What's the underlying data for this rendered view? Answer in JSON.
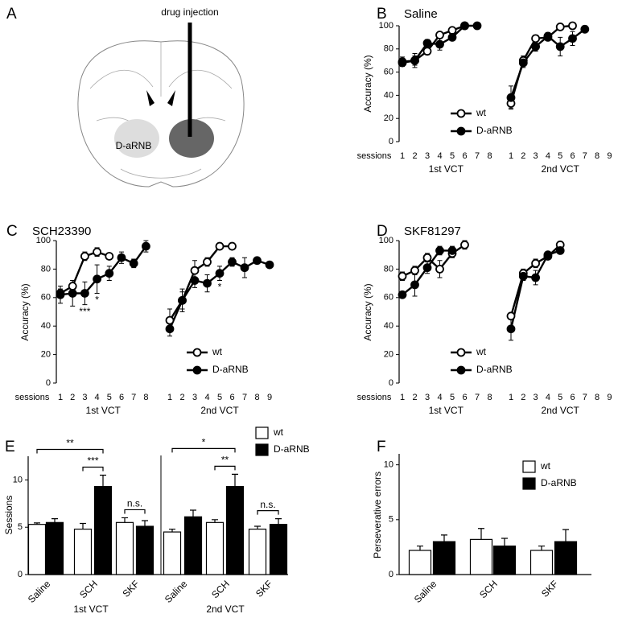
{
  "diagram": {
    "panel": "A",
    "annotation": "drug injection",
    "region": "D-aRNB"
  },
  "chart_data": [
    {
      "type": "line",
      "panel": "B",
      "title": "Saline",
      "ylabel": "Accuracy (%)",
      "xlabel": "sessions",
      "ylim": [
        0,
        100
      ],
      "yticks": [
        0,
        20,
        40,
        60,
        80,
        100
      ],
      "legend": "lower right",
      "series": [
        {
          "name": "wt",
          "marker": "open",
          "color": "#000000"
        },
        {
          "name": "D-aRNB",
          "marker": "filled",
          "color": "#000000"
        }
      ],
      "groups": [
        {
          "name": "1st VCT",
          "x": [
            1,
            2,
            3,
            4,
            5,
            6,
            7,
            8
          ],
          "values": [
            [
              68,
              70,
              78,
              92,
              96,
              100
            ],
            [
              69,
              70,
              85,
              84,
              90,
              100,
              100
            ]
          ],
          "errors": [
            [
              3,
              4,
              3,
              2,
              2,
              0
            ],
            [
              4,
              6,
              3,
              5,
              2,
              0,
              0
            ]
          ]
        },
        {
          "name": "2nd VCT",
          "x": [
            1,
            2,
            3,
            4,
            5,
            6,
            7,
            8,
            9
          ],
          "values": [
            [
              33,
              70,
              89,
              90,
              99,
              100
            ],
            [
              38,
              68,
              82,
              91,
              82,
              89,
              97
            ]
          ],
          "errors": [
            [
              4,
              4,
              3,
              2,
              1,
              0
            ],
            [
              10,
              4,
              4,
              3,
              8,
              6,
              3
            ]
          ]
        }
      ]
    },
    {
      "type": "line",
      "panel": "C",
      "title": "SCH23390",
      "ylabel": "Accuracy (%)",
      "xlabel": "sessions",
      "ylim": [
        0,
        100
      ],
      "yticks": [
        0,
        20,
        40,
        60,
        80,
        100
      ],
      "legend": "lower right",
      "series": [
        {
          "name": "wt",
          "marker": "open",
          "color": "#000000"
        },
        {
          "name": "D-aRNB",
          "marker": "filled",
          "color": "#000000"
        }
      ],
      "groups": [
        {
          "name": "1st VCT",
          "x": [
            1,
            2,
            3,
            4,
            5,
            6,
            7,
            8
          ],
          "values": [
            [
              63,
              68,
              89,
              92,
              89
            ],
            [
              62,
              63,
              63,
              73,
              77,
              88,
              84,
              96
            ]
          ],
          "errors": [
            [
              3,
              4,
              3,
              3,
              2
            ],
            [
              6,
              9,
              8,
              10,
              5,
              4,
              3,
              4
            ]
          ]
        },
        {
          "name": "2nd VCT",
          "x": [
            1,
            2,
            3,
            4,
            5,
            6,
            7,
            8,
            9
          ],
          "values": [
            [
              44,
              58,
              79,
              85,
              96,
              96
            ],
            [
              38,
              58,
              72,
              70,
              77,
              85,
              81,
              86,
              83
            ]
          ],
          "errors": [
            [
              8,
              6,
              7,
              3,
              2,
              2
            ],
            [
              5,
              8,
              5,
              6,
              5,
              3,
              7,
              2,
              1
            ]
          ]
        }
      ],
      "annotations": [
        {
          "text": "***",
          "group": 0,
          "x": 3
        },
        {
          "text": "*",
          "group": 0,
          "x": 4
        },
        {
          "text": "*",
          "group": 1,
          "x": 5
        }
      ]
    },
    {
      "type": "line",
      "panel": "D",
      "title": "SKF81297",
      "ylabel": "Accuracy (%)",
      "xlabel": "sessions",
      "ylim": [
        0,
        100
      ],
      "yticks": [
        0,
        20,
        40,
        60,
        80,
        100
      ],
      "legend": "lower right",
      "series": [
        {
          "name": "wt",
          "marker": "open",
          "color": "#000000"
        },
        {
          "name": "D-aRNB",
          "marker": "filled",
          "color": "#000000"
        }
      ],
      "groups": [
        {
          "name": "1st VCT",
          "x": [
            1,
            2,
            3,
            4,
            5,
            6,
            7,
            8
          ],
          "values": [
            [
              75,
              79,
              88,
              80,
              91,
              97
            ],
            [
              62,
              69,
              81,
              93,
              93
            ]
          ],
          "errors": [
            [
              3,
              3,
              3,
              6,
              3,
              3
            ],
            [
              2,
              8,
              4,
              3,
              3
            ]
          ]
        },
        {
          "name": "2nd VCT",
          "x": [
            1,
            2,
            3,
            4,
            5,
            6,
            7,
            8,
            9
          ],
          "values": [
            [
              47,
              77,
              84,
              89,
              97
            ],
            [
              38,
              75,
              74,
              90,
              93
            ]
          ],
          "errors": [
            [
              2,
              3,
              3,
              2,
              1
            ],
            [
              8,
              3,
              5,
              2,
              2
            ]
          ]
        }
      ]
    },
    {
      "type": "bar",
      "panel": "E",
      "ylabel": "Sessions",
      "ylim": [
        0,
        12.5
      ],
      "yticks": [
        0,
        5,
        10
      ],
      "legend": "upper right",
      "series": [
        {
          "name": "wt",
          "color": "#ffffff"
        },
        {
          "name": "D-aRNB",
          "color": "#000000"
        }
      ],
      "groups": [
        {
          "name": "1st VCT",
          "categories": [
            "Saline",
            "SCH",
            "SKF"
          ],
          "values": [
            [
              5.3,
              4.8,
              5.5
            ],
            [
              5.5,
              9.3,
              5.1
            ]
          ],
          "errors": [
            [
              0.15,
              0.6,
              0.5
            ],
            [
              0.4,
              1.2,
              0.6
            ]
          ],
          "brackets": [
            {
              "label": "**",
              "from": [
                0,
                0
              ],
              "to": [
                1,
                1
              ]
            },
            {
              "label": "***",
              "from": [
                1,
                0
              ],
              "to": [
                1,
                1
              ]
            },
            {
              "label": "n.s.",
              "from": [
                2,
                0
              ],
              "to": [
                2,
                1
              ]
            }
          ]
        },
        {
          "name": "2nd VCT",
          "categories": [
            "Saline",
            "SCH",
            "SKF"
          ],
          "values": [
            [
              4.5,
              5.5,
              4.8
            ],
            [
              6.1,
              9.3,
              5.3
            ]
          ],
          "errors": [
            [
              0.3,
              0.3,
              0.3
            ],
            [
              0.7,
              1.3,
              0.6
            ]
          ],
          "brackets": [
            {
              "label": "*",
              "from": [
                0,
                0
              ],
              "to": [
                1,
                1
              ]
            },
            {
              "label": "**",
              "from": [
                1,
                0
              ],
              "to": [
                1,
                1
              ]
            },
            {
              "label": "n.s.",
              "from": [
                2,
                0
              ],
              "to": [
                2,
                1
              ]
            }
          ]
        }
      ]
    },
    {
      "type": "bar",
      "panel": "F",
      "ylabel": "Perseverative errors",
      "ylim": [
        0,
        11
      ],
      "yticks": [
        0,
        5,
        10
      ],
      "legend": "upper right",
      "series": [
        {
          "name": "wt",
          "color": "#ffffff"
        },
        {
          "name": "D-aRNB",
          "color": "#000000"
        }
      ],
      "groups": [
        {
          "categories": [
            "Saline",
            "SCH",
            "SKF"
          ],
          "values": [
            [
              2.2,
              3.2,
              2.2
            ],
            [
              3.0,
              2.6,
              3.0
            ]
          ],
          "errors": [
            [
              0.4,
              1.0,
              0.4
            ],
            [
              0.6,
              0.7,
              1.1
            ]
          ]
        }
      ]
    }
  ]
}
